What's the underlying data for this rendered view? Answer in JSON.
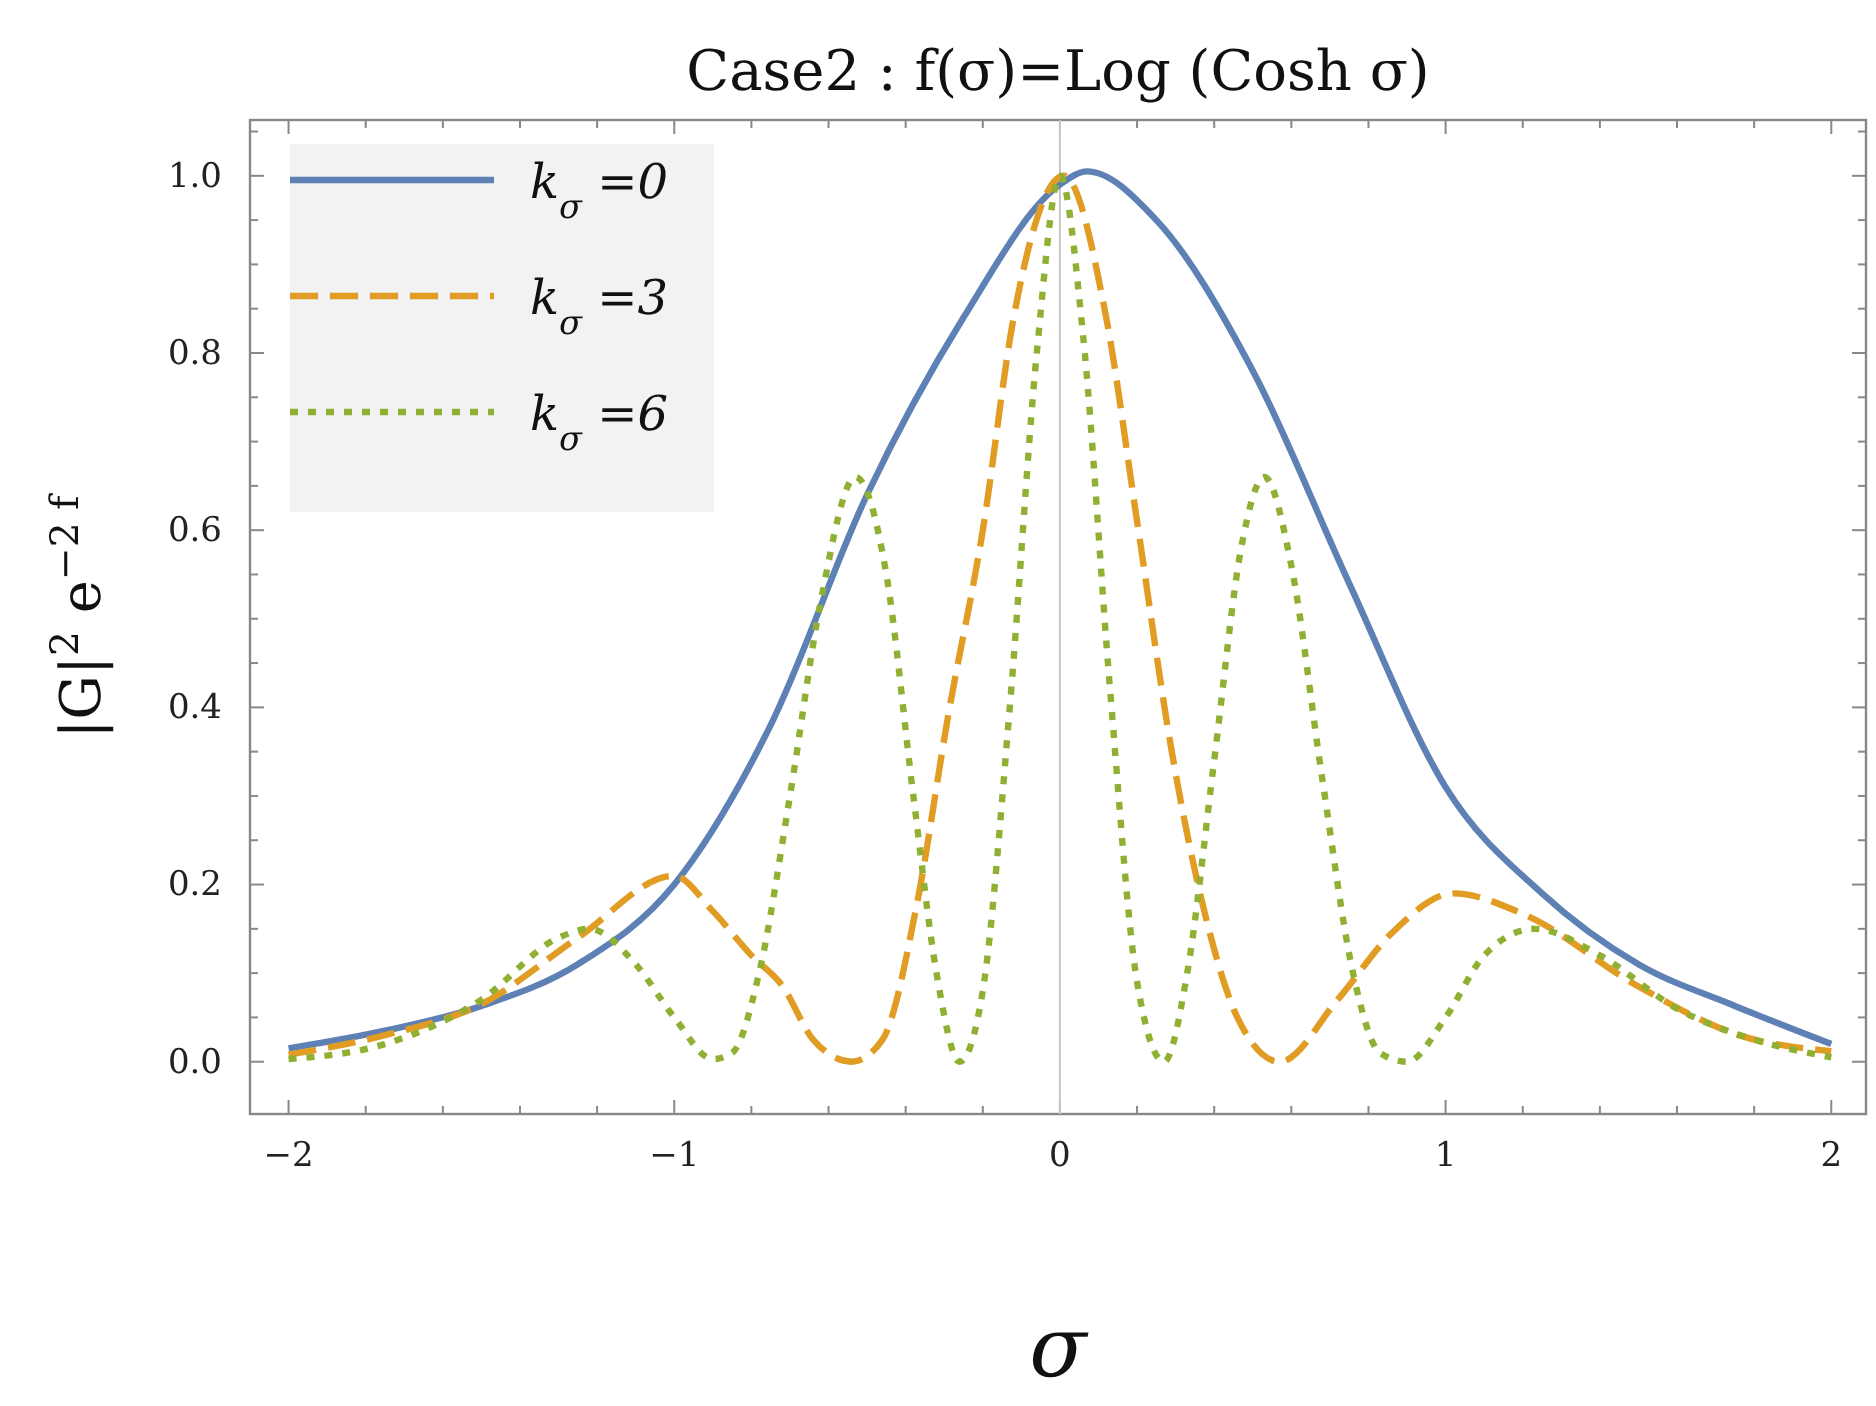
{
  "chart_data": {
    "type": "line",
    "title": "Case2 : f(σ)=Log (Cosh  σ)",
    "xlabel": "σ",
    "ylabel": "|G|$^{2}$  e$^{−2 f}$",
    "xlim": [
      -2.1,
      2.09
    ],
    "ylim": [
      -0.059,
      1.063
    ],
    "xticks": [
      {
        "value": -2,
        "label": "−2"
      },
      {
        "value": -1.8,
        "label": null
      },
      {
        "value": -1.6,
        "label": null
      },
      {
        "value": -1.4,
        "label": null
      },
      {
        "value": -1.2,
        "label": null
      },
      {
        "value": -1,
        "label": "−1"
      },
      {
        "value": -0.8,
        "label": null
      },
      {
        "value": -0.6,
        "label": null
      },
      {
        "value": -0.4,
        "label": null
      },
      {
        "value": -0.2,
        "label": null
      },
      0,
      {
        "value": 0.2,
        "label": null
      },
      {
        "value": 0.4,
        "label": null
      },
      {
        "value": 0.6,
        "label": null
      },
      {
        "value": 0.8,
        "label": null
      },
      1,
      {
        "value": 1.2,
        "label": null
      },
      {
        "value": 1.4,
        "label": null
      },
      {
        "value": 1.6,
        "label": null
      },
      {
        "value": 1.8,
        "label": null
      },
      2
    ],
    "yticks": [
      {
        "value": 0,
        "label": "0.0"
      },
      {
        "value": 0.05,
        "label": null
      },
      {
        "value": 0.1,
        "label": null
      },
      {
        "value": 0.15,
        "label": null
      },
      {
        "value": 0.2,
        "label": "0.2"
      },
      {
        "value": 0.25,
        "label": null
      },
      {
        "value": 0.3,
        "label": null
      },
      {
        "value": 0.35,
        "label": null
      },
      {
        "value": 0.4,
        "label": "0.4"
      },
      {
        "value": 0.45,
        "label": null
      },
      {
        "value": 0.5,
        "label": null
      },
      {
        "value": 0.55,
        "label": null
      },
      {
        "value": 0.6,
        "label": "0.6"
      },
      {
        "value": 0.65,
        "label": null
      },
      {
        "value": 0.7,
        "label": null
      },
      {
        "value": 0.75,
        "label": null
      },
      {
        "value": 0.8,
        "label": "0.8"
      },
      {
        "value": 0.85,
        "label": null
      },
      {
        "value": 0.9,
        "label": null
      },
      {
        "value": 0.95,
        "label": null
      },
      {
        "value": 1,
        "label": "1.0"
      },
      {
        "value": 1.05,
        "label": null
      }
    ],
    "grid": false,
    "legend": "top left",
    "ref_lines": [
      {
        "axis": "x",
        "value": 0,
        "color": "#c8c8c8"
      }
    ],
    "series": [
      {
        "name": "k$_{σ}$ =0",
        "color": "#5e81b5",
        "line_style": "solid",
        "x": [
          -2,
          -1.75,
          -1.5,
          -1.25,
          -1,
          -0.75,
          -0.5,
          -0.25,
          0,
          0.07,
          0.25,
          0.5,
          0.75,
          1,
          1.25,
          1.5,
          1.75,
          2
        ],
        "values": [
          0.015,
          0.035,
          0.063,
          0.11,
          0.2,
          0.38,
          0.64,
          0.84,
          0.99,
          1.005,
          0.95,
          0.78,
          0.54,
          0.31,
          0.19,
          0.11,
          0.063,
          0.02
        ]
      },
      {
        "name": "k$_{σ}$ =3",
        "color": "#e19c24",
        "line_style": "dashed",
        "x": [
          -2,
          -1.75,
          -1.5,
          -1.25,
          -1,
          -0.9,
          -0.8,
          -0.72,
          -0.64,
          -0.54,
          -0.46,
          -0.37,
          -0.29,
          -0.2,
          -0.12,
          0.01,
          0.12,
          0.2,
          0.29,
          0.38,
          0.46,
          0.57,
          0.72,
          0.86,
          1.02,
          1.2,
          1.5,
          1.76,
          2
        ],
        "values": [
          0.008,
          0.03,
          0.065,
          0.14,
          0.21,
          0.17,
          0.12,
          0.086,
          0.025,
          0,
          0.025,
          0.18,
          0.39,
          0.6,
          0.84,
          1,
          0.84,
          0.61,
          0.35,
          0.16,
          0.05,
          0,
          0.07,
          0.145,
          0.19,
          0.167,
          0.085,
          0.03,
          0.012
        ]
      },
      {
        "name": "k$_{σ}$ =6",
        "color": "#8fb032",
        "line_style": "dotted",
        "x": [
          -2,
          -1.75,
          -1.5,
          -1.3,
          -1.22,
          -1.1,
          -1,
          -0.9,
          -0.85,
          -0.78,
          -0.7,
          -0.62,
          -0.53,
          -0.45,
          -0.38,
          -0.32,
          -0.26,
          -0.2,
          -0.13,
          -0.06,
          0,
          0.06,
          0.13,
          0.2,
          0.27,
          0.33,
          0.4,
          0.47,
          0.53,
          0.6,
          0.68,
          0.76,
          0.83,
          0.9,
          1,
          1.1,
          1.23,
          1.4,
          1.6,
          1.8,
          2
        ],
        "values": [
          0.003,
          0.02,
          0.07,
          0.14,
          0.15,
          0.11,
          0.05,
          0.003,
          0.01,
          0.1,
          0.3,
          0.52,
          0.66,
          0.55,
          0.3,
          0.1,
          0,
          0.08,
          0.4,
          0.8,
          1,
          0.82,
          0.42,
          0.09,
          0,
          0.1,
          0.34,
          0.58,
          0.66,
          0.56,
          0.32,
          0.1,
          0.01,
          0,
          0.05,
          0.12,
          0.15,
          0.12,
          0.06,
          0.025,
          0.005
        ]
      }
    ]
  }
}
